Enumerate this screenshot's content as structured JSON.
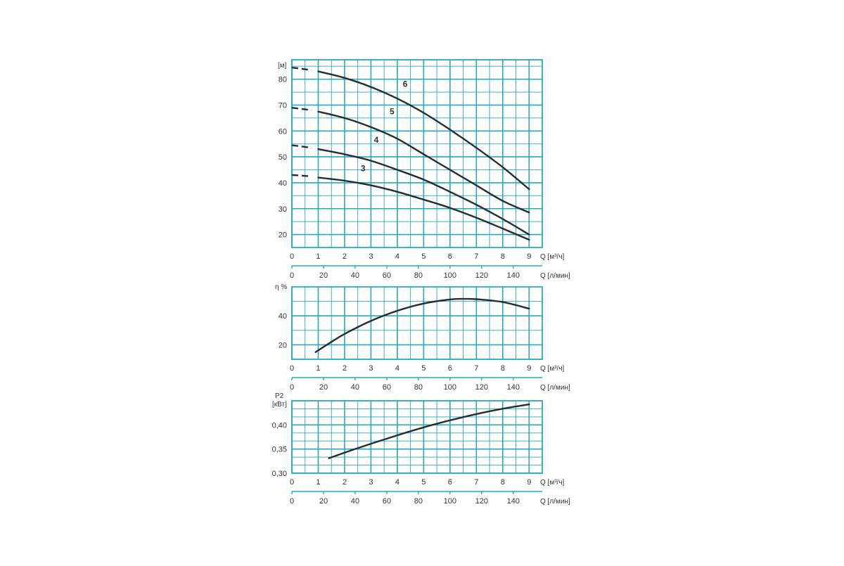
{
  "colors": {
    "grid": "#2aa7b8",
    "curve": "#262d30",
    "text": "#333333"
  },
  "chart_data": [
    {
      "type": "line",
      "ylabel": "[м]",
      "xlabel": "Q [м³/ч]",
      "x2label": "Q [л/мин]",
      "xlim": [
        0,
        9.5
      ],
      "ylim": [
        15,
        87.5
      ],
      "x_ticks": [
        0,
        1,
        2,
        3,
        4,
        5,
        6,
        7,
        8,
        9
      ],
      "x2_ticks": [
        0,
        20,
        40,
        60,
        80,
        100,
        120,
        140
      ],
      "y_ticks": [
        20,
        30,
        40,
        50,
        60,
        70,
        80
      ],
      "grid": true,
      "series": [
        {
          "name": "3",
          "dashed": [
            [
              0,
              43
            ],
            [
              0.75,
              42.5
            ]
          ],
          "x": [
            1,
            2,
            3,
            4,
            5,
            6,
            7,
            8,
            9
          ],
          "y": [
            42,
            40.8,
            39,
            36.5,
            33.5,
            30.3,
            26.5,
            22.3,
            18
          ]
        },
        {
          "name": "4",
          "dashed": [
            [
              0,
              54.5
            ],
            [
              0.75,
              53.5
            ]
          ],
          "x": [
            1,
            2,
            3,
            4,
            5,
            6,
            7,
            8,
            9
          ],
          "y": [
            53,
            51,
            48.5,
            45,
            41.2,
            36.5,
            31.5,
            26,
            20
          ]
        },
        {
          "name": "5",
          "dashed": [
            [
              0,
              69
            ],
            [
              0.75,
              68
            ]
          ],
          "x": [
            1,
            2,
            3,
            4,
            5,
            6,
            7,
            8,
            9
          ],
          "y": [
            67.5,
            65,
            61.5,
            57,
            51,
            45,
            39,
            33,
            28.5
          ]
        },
        {
          "name": "6",
          "dashed": [
            [
              0,
              84.5
            ],
            [
              0.75,
              83.5
            ]
          ],
          "x": [
            1,
            2,
            3,
            4,
            5,
            6,
            7,
            8,
            9
          ],
          "y": [
            83,
            80.5,
            77,
            72.5,
            67,
            60.5,
            53.5,
            46,
            37.5
          ]
        }
      ]
    },
    {
      "type": "line",
      "ylabel": "η %",
      "xlabel": "Q [м³/ч]",
      "x2label": "Q [л/мин]",
      "xlim": [
        0,
        9.5
      ],
      "ylim": [
        10,
        60
      ],
      "x_ticks": [
        0,
        1,
        2,
        3,
        4,
        5,
        6,
        7,
        8,
        9
      ],
      "x2_ticks": [
        0,
        20,
        40,
        60,
        80,
        100,
        120,
        140
      ],
      "y_ticks": [
        20,
        40
      ],
      "grid": true,
      "series": [
        {
          "x": [
            0.9,
            1.5,
            2,
            3,
            4,
            5,
            6,
            6.5,
            7,
            8,
            9
          ],
          "y": [
            15,
            22,
            27.5,
            36.5,
            43.5,
            48.5,
            51.3,
            51.7,
            51.5,
            49.5,
            45
          ]
        }
      ]
    },
    {
      "type": "line",
      "ylabel": "P2",
      "ylabel2": "[кВт]",
      "xlabel": "Q [м³/ч]",
      "x2label": "Q [л/мин]",
      "xlim": [
        0,
        9.5
      ],
      "ylim": [
        0.3,
        0.45
      ],
      "x_ticks": [
        0,
        1,
        2,
        3,
        4,
        5,
        6,
        7,
        8,
        9
      ],
      "x2_ticks": [
        0,
        20,
        40,
        60,
        80,
        100,
        120,
        140
      ],
      "y_ticks": [
        "0,30",
        "0,35",
        "0,40"
      ],
      "y_tick_values": [
        0.3,
        0.35,
        0.4
      ],
      "grid": true,
      "series": [
        {
          "x": [
            1.4,
            2,
            3,
            4,
            5,
            6,
            7,
            8,
            9
          ],
          "y": [
            0.331,
            0.3425,
            0.361,
            0.3785,
            0.395,
            0.4095,
            0.4225,
            0.4335,
            0.4425
          ]
        }
      ]
    }
  ]
}
